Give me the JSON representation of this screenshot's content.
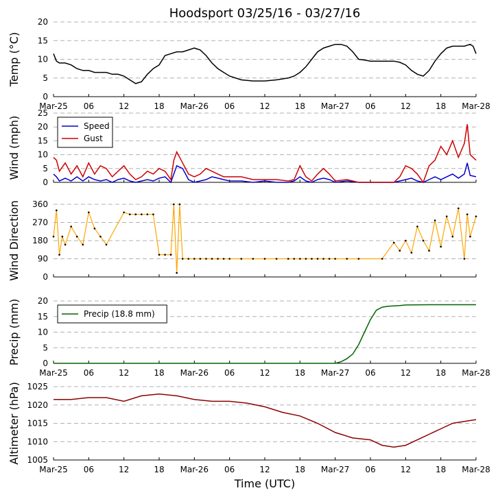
{
  "chart_data": {
    "title": "Hoodsport 03/25/16 - 03/27/16",
    "xlabel": "Time (UTC)",
    "x_unit": "hours since Mar-25 00:00 UTC",
    "xlim": [
      0,
      72
    ],
    "x_ticks": [
      {
        "h": 0,
        "label": "Mar-25"
      },
      {
        "h": 6,
        "label": "06"
      },
      {
        "h": 12,
        "label": "12"
      },
      {
        "h": 18,
        "label": "18"
      },
      {
        "h": 24,
        "label": "Mar-26"
      },
      {
        "h": 30,
        "label": "06"
      },
      {
        "h": 36,
        "label": "12"
      },
      {
        "h": 42,
        "label": "18"
      },
      {
        "h": 48,
        "label": "Mar-27"
      },
      {
        "h": 54,
        "label": "06"
      },
      {
        "h": 60,
        "label": "12"
      },
      {
        "h": 66,
        "label": "18"
      },
      {
        "h": 72,
        "label": "Mar-28"
      }
    ],
    "panels": [
      {
        "id": "temp",
        "type": "line",
        "ylabel": "Temp (°C)",
        "ylim": [
          0,
          20
        ],
        "yticks": [
          0,
          5,
          10,
          15,
          20
        ],
        "show_x_labels": true,
        "series": [
          {
            "name": "Temp",
            "color": "#000000",
            "x": [
              0,
              0.5,
              1,
              2,
              3,
              4,
              5,
              6,
              7,
              8,
              9,
              10,
              11,
              12,
              13,
              14,
              15,
              16,
              17,
              18,
              19,
              20,
              21,
              22,
              23,
              24,
              25,
              26,
              27,
              28,
              29,
              30,
              32,
              34,
              36,
              38,
              40,
              41,
              42,
              43,
              44,
              45,
              46,
              47,
              48,
              49,
              50,
              51,
              52,
              53,
              54,
              56,
              58,
              59,
              60,
              61,
              62,
              63,
              64,
              65,
              66,
              67,
              68,
              69,
              70,
              71,
              71.5,
              72
            ],
            "y": [
              11.5,
              9.5,
              9,
              9,
              8.5,
              7.5,
              7,
              7,
              6.5,
              6.5,
              6.5,
              6,
              6,
              5.5,
              4.5,
              3.5,
              4,
              6,
              7.5,
              8.5,
              11,
              11.5,
              12,
              12,
              12.5,
              13,
              12.5,
              11,
              9,
              7.5,
              6.5,
              5.5,
              4.5,
              4.2,
              4.2,
              4.5,
              5,
              5.5,
              6.5,
              8,
              10,
              12,
              13,
              13.5,
              14,
              14,
              13.5,
              12,
              10,
              9.8,
              9.5,
              9.5,
              9.5,
              9.2,
              8.5,
              7,
              6,
              5.5,
              7,
              9.5,
              11.5,
              13,
              13.5,
              13.5,
              13.5,
              14,
              13.5,
              11.5
            ]
          }
        ]
      },
      {
        "id": "wind",
        "type": "line",
        "ylabel": "Wind (mph)",
        "ylim": [
          0,
          25
        ],
        "yticks": [
          0,
          5,
          10,
          15,
          20,
          25
        ],
        "show_x_labels": false,
        "legend": {
          "placement": "top-left"
        },
        "series": [
          {
            "name": "Speed",
            "color": "#0000cc",
            "x": [
              0,
              0.5,
              1,
              2,
              3,
              4,
              5,
              6,
              7,
              8,
              9,
              10,
              11,
              12,
              13,
              14,
              15,
              16,
              17,
              18,
              19,
              20,
              20.5,
              21,
              22,
              23,
              24,
              25,
              26,
              27,
              28,
              29,
              30,
              32,
              34,
              36,
              38,
              40,
              41,
              42,
              43,
              44,
              45,
              46,
              47,
              48,
              50,
              52,
              54,
              56,
              58,
              59,
              60,
              61,
              62,
              63,
              64,
              65,
              66,
              67,
              68,
              69,
              70,
              70.5,
              71,
              72
            ],
            "y": [
              3,
              2,
              0.5,
              1.5,
              0.5,
              2,
              0.5,
              2,
              1,
              0.5,
              1,
              0,
              1,
              1.5,
              0.5,
              0,
              0.5,
              1,
              0.5,
              1.5,
              2,
              0,
              3,
              6,
              5,
              1,
              0,
              0.5,
              1,
              2,
              1.5,
              1,
              0.5,
              0.5,
              0,
              0.5,
              0,
              0,
              0.5,
              2,
              0.5,
              0,
              1,
              1.5,
              1,
              0,
              0.5,
              0,
              0,
              0,
              0,
              0.5,
              1,
              1.5,
              0.5,
              0,
              1,
              2,
              1,
              2,
              3,
              1.5,
              3,
              7,
              2.5,
              2
            ]
          },
          {
            "name": "Gust",
            "color": "#cc0000",
            "x": [
              0,
              0.5,
              1,
              2,
              3,
              4,
              5,
              6,
              7,
              8,
              9,
              10,
              11,
              12,
              13,
              14,
              15,
              16,
              17,
              18,
              19,
              20,
              20.5,
              21,
              22,
              23,
              24,
              25,
              26,
              27,
              28,
              29,
              30,
              32,
              34,
              36,
              38,
              40,
              41,
              42,
              43,
              44,
              45,
              46,
              47,
              48,
              50,
              52,
              54,
              56,
              58,
              59,
              60,
              61,
              62,
              63,
              64,
              65,
              66,
              67,
              68,
              69,
              70,
              70.5,
              71,
              72
            ],
            "y": [
              9,
              8,
              4,
              7,
              3,
              6,
              2,
              7,
              3,
              6,
              5,
              2,
              4,
              6,
              3,
              1,
              2,
              4,
              3,
              5,
              4,
              1,
              8,
              11,
              7,
              3,
              2,
              3,
              5,
              4,
              3,
              2,
              2,
              2,
              1,
              1,
              1,
              0.5,
              1,
              6,
              2,
              0.5,
              3,
              5,
              3,
              0.5,
              1,
              0,
              0,
              0,
              0,
              2,
              6,
              5,
              3,
              0,
              6,
              8,
              13,
              10,
              15,
              9,
              14,
              21,
              10,
              8
            ]
          }
        ]
      },
      {
        "id": "winddir",
        "type": "scatter-line",
        "ylabel": "Wind Direction",
        "ylim": [
          0,
          360
        ],
        "yticks": [
          0,
          90,
          180,
          270,
          360
        ],
        "show_x_labels": false,
        "series": [
          {
            "name": "Direction",
            "color": "#ffa500",
            "x": [
              0,
              0.5,
              1,
              1.5,
              2,
              3,
              4,
              5,
              6,
              7,
              8,
              9,
              12,
              13,
              14,
              15,
              16,
              17,
              18,
              19,
              20,
              20.5,
              21,
              21.5,
              22,
              23,
              24,
              25,
              26,
              27,
              28,
              29,
              30,
              32,
              34,
              36,
              38,
              40,
              41,
              42,
              43,
              44,
              45,
              46,
              47,
              48,
              50,
              52,
              56,
              58,
              59,
              60,
              61,
              62,
              63,
              64,
              65,
              66,
              67,
              68,
              69,
              70,
              70.5,
              71,
              72
            ],
            "y": [
              200,
              330,
              110,
              200,
              160,
              250,
              200,
              160,
              320,
              240,
              200,
              160,
              320,
              310,
              310,
              310,
              310,
              310,
              110,
              110,
              110,
              360,
              20,
              360,
              90,
              90,
              90,
              90,
              90,
              90,
              90,
              90,
              90,
              90,
              90,
              90,
              90,
              90,
              90,
              90,
              90,
              90,
              90,
              90,
              90,
              90,
              90,
              90,
              90,
              170,
              130,
              180,
              120,
              250,
              180,
              130,
              280,
              150,
              300,
              200,
              340,
              90,
              310,
              200,
              300
            ]
          }
        ]
      },
      {
        "id": "precip",
        "type": "line",
        "ylabel": "Precip (mm)",
        "ylim": [
          0,
          20
        ],
        "yticks": [
          0,
          5,
          10,
          15,
          20
        ],
        "show_x_labels": true,
        "legend": {
          "placement": "top-left"
        },
        "series": [
          {
            "name": "Precip (18.8 mm)",
            "color": "#006400",
            "x": [
              0,
              12,
              24,
              36,
              48,
              49,
              50,
              51,
              52,
              53,
              54,
              55,
              56,
              57,
              58,
              59,
              60,
              64,
              68,
              72
            ],
            "y": [
              0,
              0,
              0,
              0,
              0,
              0.5,
              1.5,
              3,
              6,
              10,
              14,
              17,
              18,
              18.3,
              18.4,
              18.5,
              18.7,
              18.8,
              18.8,
              18.8
            ]
          }
        ]
      },
      {
        "id": "altimeter",
        "type": "line",
        "ylabel": "Altimeter (hPa)",
        "ylim": [
          1005,
          1025
        ],
        "yticks": [
          1005,
          1010,
          1015,
          1020,
          1025
        ],
        "show_x_labels": true,
        "series": [
          {
            "name": "Altimeter",
            "color": "#8b0000",
            "x": [
              0,
              3,
              6,
              9,
              12,
              15,
              18,
              21,
              24,
              27,
              30,
              33,
              36,
              39,
              42,
              45,
              48,
              51,
              54,
              56,
              58,
              60,
              62,
              64,
              66,
              68,
              70,
              72
            ],
            "y": [
              1021.5,
              1021.5,
              1022,
              1022,
              1021,
              1022.5,
              1023,
              1022.5,
              1021.5,
              1021,
              1021,
              1020.5,
              1019.5,
              1018,
              1017,
              1015,
              1012.5,
              1011,
              1010.5,
              1009,
              1008.5,
              1009,
              1010.5,
              1012,
              1013.5,
              1015,
              1015.5,
              1016
            ]
          }
        ]
      }
    ]
  }
}
